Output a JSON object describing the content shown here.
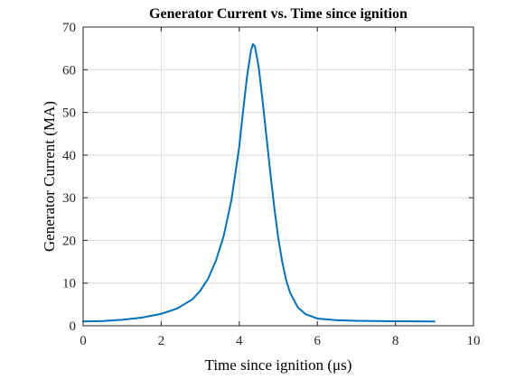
{
  "chart_data": {
    "type": "line",
    "title": "Generator Current vs. Time since ignition",
    "xlabel": "Time since ignition (μs)",
    "ylabel": "Generator Current (MA)",
    "xlim": [
      0,
      10
    ],
    "ylim": [
      0,
      70
    ],
    "xticks": [
      0,
      2,
      4,
      6,
      8,
      10
    ],
    "yticks": [
      0,
      10,
      20,
      30,
      40,
      50,
      60,
      70
    ],
    "grid": true,
    "series": [
      {
        "color": "#0072BD",
        "x": [
          0,
          0.5,
          1.0,
          1.5,
          2.0,
          2.4,
          2.8,
          3.0,
          3.2,
          3.4,
          3.6,
          3.8,
          4.0,
          4.1,
          4.2,
          4.3,
          4.35,
          4.4,
          4.5,
          4.6,
          4.7,
          4.8,
          4.9,
          5.0,
          5.1,
          5.2,
          5.3,
          5.5,
          5.7,
          6.0,
          6.5,
          7.0,
          8.0,
          9.0
        ],
        "y": [
          1.0,
          1.1,
          1.4,
          1.9,
          2.8,
          4.0,
          6.2,
          8.2,
          11.0,
          15.2,
          21.0,
          29.5,
          42.0,
          50.5,
          58.5,
          64.5,
          66.0,
          65.5,
          60.5,
          52.5,
          44.0,
          35.5,
          27.5,
          20.5,
          15.0,
          10.8,
          7.8,
          4.3,
          2.7,
          1.7,
          1.3,
          1.15,
          1.05,
          1.0
        ]
      }
    ]
  }
}
